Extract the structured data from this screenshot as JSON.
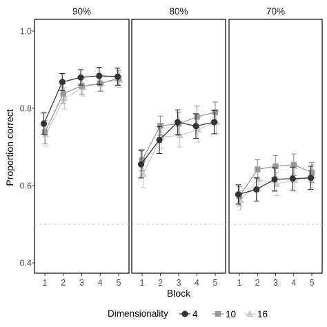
{
  "chart_data": {
    "type": "line",
    "xlabel": "Block",
    "ylabel": "Proportion correct",
    "ylim": [
      0.4,
      1.0
    ],
    "yticks": [
      "0.4",
      "0.6",
      "0.8",
      "1.0"
    ],
    "x": [
      1,
      2,
      3,
      4,
      5
    ],
    "xticks": [
      "1",
      "2",
      "3",
      "4",
      "5"
    ],
    "reference_line": 0.5,
    "grid": false,
    "legend": {
      "title": "Dimensionality",
      "placement": "bottom",
      "entries": [
        {
          "label": "4",
          "marker": "circle",
          "color": "#333333"
        },
        {
          "label": "10",
          "marker": "square",
          "color": "#999999"
        },
        {
          "label": "16",
          "marker": "triangle",
          "color": "#cccccc"
        }
      ]
    },
    "panels": [
      {
        "strip": "90%",
        "series": [
          {
            "name": "4",
            "values": [
              0.76,
              0.868,
              0.88,
              0.884,
              0.882
            ],
            "err": [
              0.028,
              0.022,
              0.02,
              0.022,
              0.022
            ]
          },
          {
            "name": "10",
            "values": [
              0.738,
              0.838,
              0.858,
              0.864,
              0.878
            ],
            "err": [
              0.03,
              0.025,
              0.022,
              0.02,
              0.02
            ]
          },
          {
            "name": "16",
            "values": [
              0.732,
              0.826,
              0.854,
              0.866,
              0.874
            ],
            "err": [
              0.03,
              0.028,
              0.022,
              0.02,
              0.02
            ]
          }
        ]
      },
      {
        "strip": "80%",
        "series": [
          {
            "name": "4",
            "values": [
              0.655,
              0.718,
              0.764,
              0.754,
              0.764
            ],
            "err": [
              0.035,
              0.035,
              0.032,
              0.032,
              0.03
            ]
          },
          {
            "name": "10",
            "values": [
              0.666,
              0.755,
              0.76,
              0.778,
              0.79
            ],
            "err": [
              0.028,
              0.025,
              0.03,
              0.028,
              0.026
            ]
          },
          {
            "name": "16",
            "values": [
              0.63,
              0.726,
              0.73,
              0.745,
              0.765
            ],
            "err": [
              0.035,
              0.03,
              0.03,
              0.032,
              0.03
            ]
          }
        ]
      },
      {
        "strip": "70%",
        "series": [
          {
            "name": "4",
            "values": [
              0.577,
              0.59,
              0.616,
              0.618,
              0.62
            ],
            "err": [
              0.025,
              0.03,
              0.03,
              0.03,
              0.03
            ]
          },
          {
            "name": "10",
            "values": [
              0.572,
              0.642,
              0.65,
              0.654,
              0.634
            ],
            "err": [
              0.025,
              0.025,
              0.028,
              0.028,
              0.026
            ]
          },
          {
            "name": "16",
            "values": [
              0.562,
              0.616,
              0.604,
              0.614,
              0.624
            ],
            "err": [
              0.025,
              0.03,
              0.03,
              0.03,
              0.03
            ]
          }
        ]
      }
    ]
  }
}
